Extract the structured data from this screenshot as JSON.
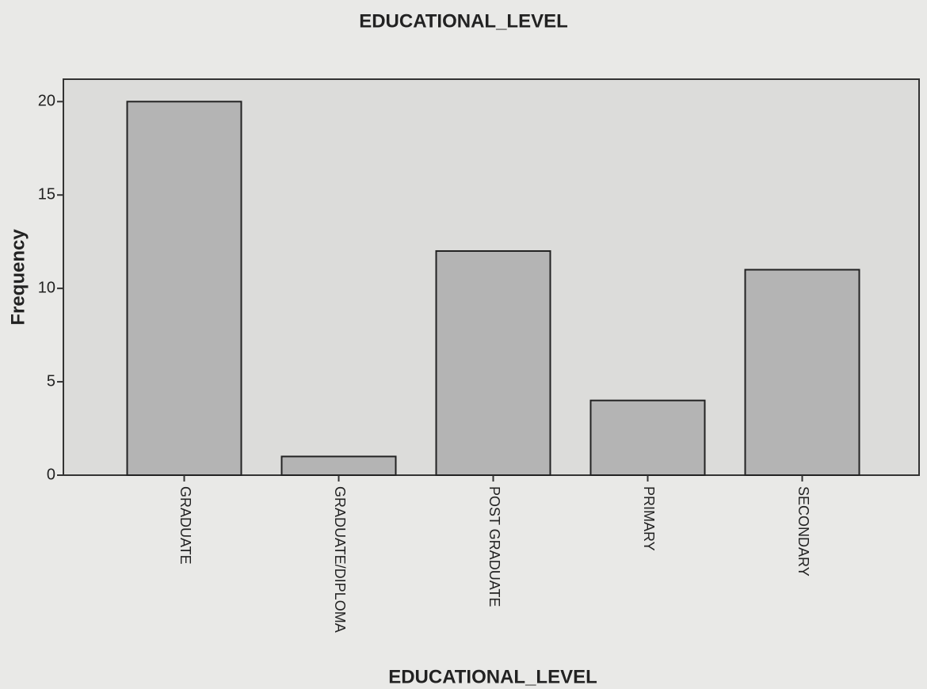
{
  "chart_data": {
    "type": "bar",
    "title": "EDUCATIONAL_LEVEL",
    "x_label": "EDUCATIONAL_LEVEL",
    "y_label": "Frequency",
    "categories": [
      "GRADUATE",
      "GRADUATE/DIPLOMA",
      "POST GRADUATE",
      "PRIMARY",
      "SECONDARY"
    ],
    "values": [
      20,
      1,
      12,
      4,
      11
    ],
    "color": "#b4b4b4",
    "ylim": [
      0,
      21.2
    ],
    "yticks": [
      0,
      5,
      10,
      15,
      20
    ],
    "grid": false
  }
}
